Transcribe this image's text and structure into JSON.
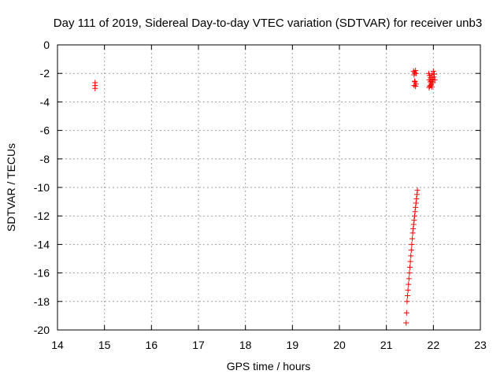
{
  "chart_data": {
    "type": "scatter",
    "title": "Day 111 of 2019, Sidereal Day-to-day VTEC variation (SDTVAR) for receiver unb3",
    "xlabel": "GPS time / hours",
    "ylabel": "SDTVAR / TECUs",
    "xlim": [
      14,
      23
    ],
    "ylim": [
      -20,
      0
    ],
    "xticks": [
      14,
      15,
      16,
      17,
      18,
      19,
      20,
      21,
      22,
      23
    ],
    "yticks": [
      0,
      -2,
      -4,
      -6,
      -8,
      -10,
      -12,
      -14,
      -16,
      -18,
      -20
    ],
    "grid": true,
    "marker": "+",
    "color": "#ff0000",
    "series": [
      {
        "name": "SDTVAR",
        "points": [
          [
            14.8,
            -2.65
          ],
          [
            14.8,
            -2.85
          ],
          [
            14.8,
            -3.05
          ],
          [
            21.58,
            -1.85
          ],
          [
            21.6,
            -1.95
          ],
          [
            21.62,
            -1.8
          ],
          [
            21.63,
            -2.0
          ],
          [
            21.59,
            -2.1
          ],
          [
            21.61,
            -2.6
          ],
          [
            21.63,
            -2.75
          ],
          [
            21.59,
            -2.85
          ],
          [
            21.62,
            -2.9
          ],
          [
            21.6,
            -2.55
          ],
          [
            21.9,
            -2.0
          ],
          [
            21.92,
            -2.15
          ],
          [
            21.94,
            -2.3
          ],
          [
            21.91,
            -2.45
          ],
          [
            21.93,
            -2.6
          ],
          [
            21.95,
            -2.75
          ],
          [
            21.92,
            -2.9
          ],
          [
            21.97,
            -2.1
          ],
          [
            21.98,
            -2.4
          ],
          [
            21.96,
            -2.55
          ],
          [
            22.0,
            -1.85
          ],
          [
            22.02,
            -2.05
          ],
          [
            22.01,
            -2.25
          ],
          [
            22.03,
            -2.45
          ],
          [
            21.99,
            -2.65
          ],
          [
            21.94,
            -2.85
          ],
          [
            21.97,
            -2.95
          ],
          [
            21.91,
            -3.0
          ],
          [
            21.66,
            -10.2
          ],
          [
            21.65,
            -10.5
          ],
          [
            21.64,
            -10.8
          ],
          [
            21.63,
            -11.1
          ],
          [
            21.62,
            -11.4
          ],
          [
            21.61,
            -11.7
          ],
          [
            21.6,
            -12.0
          ],
          [
            21.59,
            -12.3
          ],
          [
            21.58,
            -12.6
          ],
          [
            21.57,
            -12.9
          ],
          [
            21.56,
            -13.2
          ],
          [
            21.55,
            -13.6
          ],
          [
            21.54,
            -14.0
          ],
          [
            21.53,
            -14.4
          ],
          [
            21.52,
            -14.8
          ],
          [
            21.51,
            -15.2
          ],
          [
            21.5,
            -15.6
          ],
          [
            21.49,
            -16.0
          ],
          [
            21.48,
            -16.4
          ],
          [
            21.47,
            -16.8
          ],
          [
            21.46,
            -17.2
          ],
          [
            21.45,
            -17.6
          ],
          [
            21.44,
            -18.0
          ],
          [
            21.43,
            -18.8
          ],
          [
            21.42,
            -19.5
          ]
        ]
      }
    ]
  }
}
